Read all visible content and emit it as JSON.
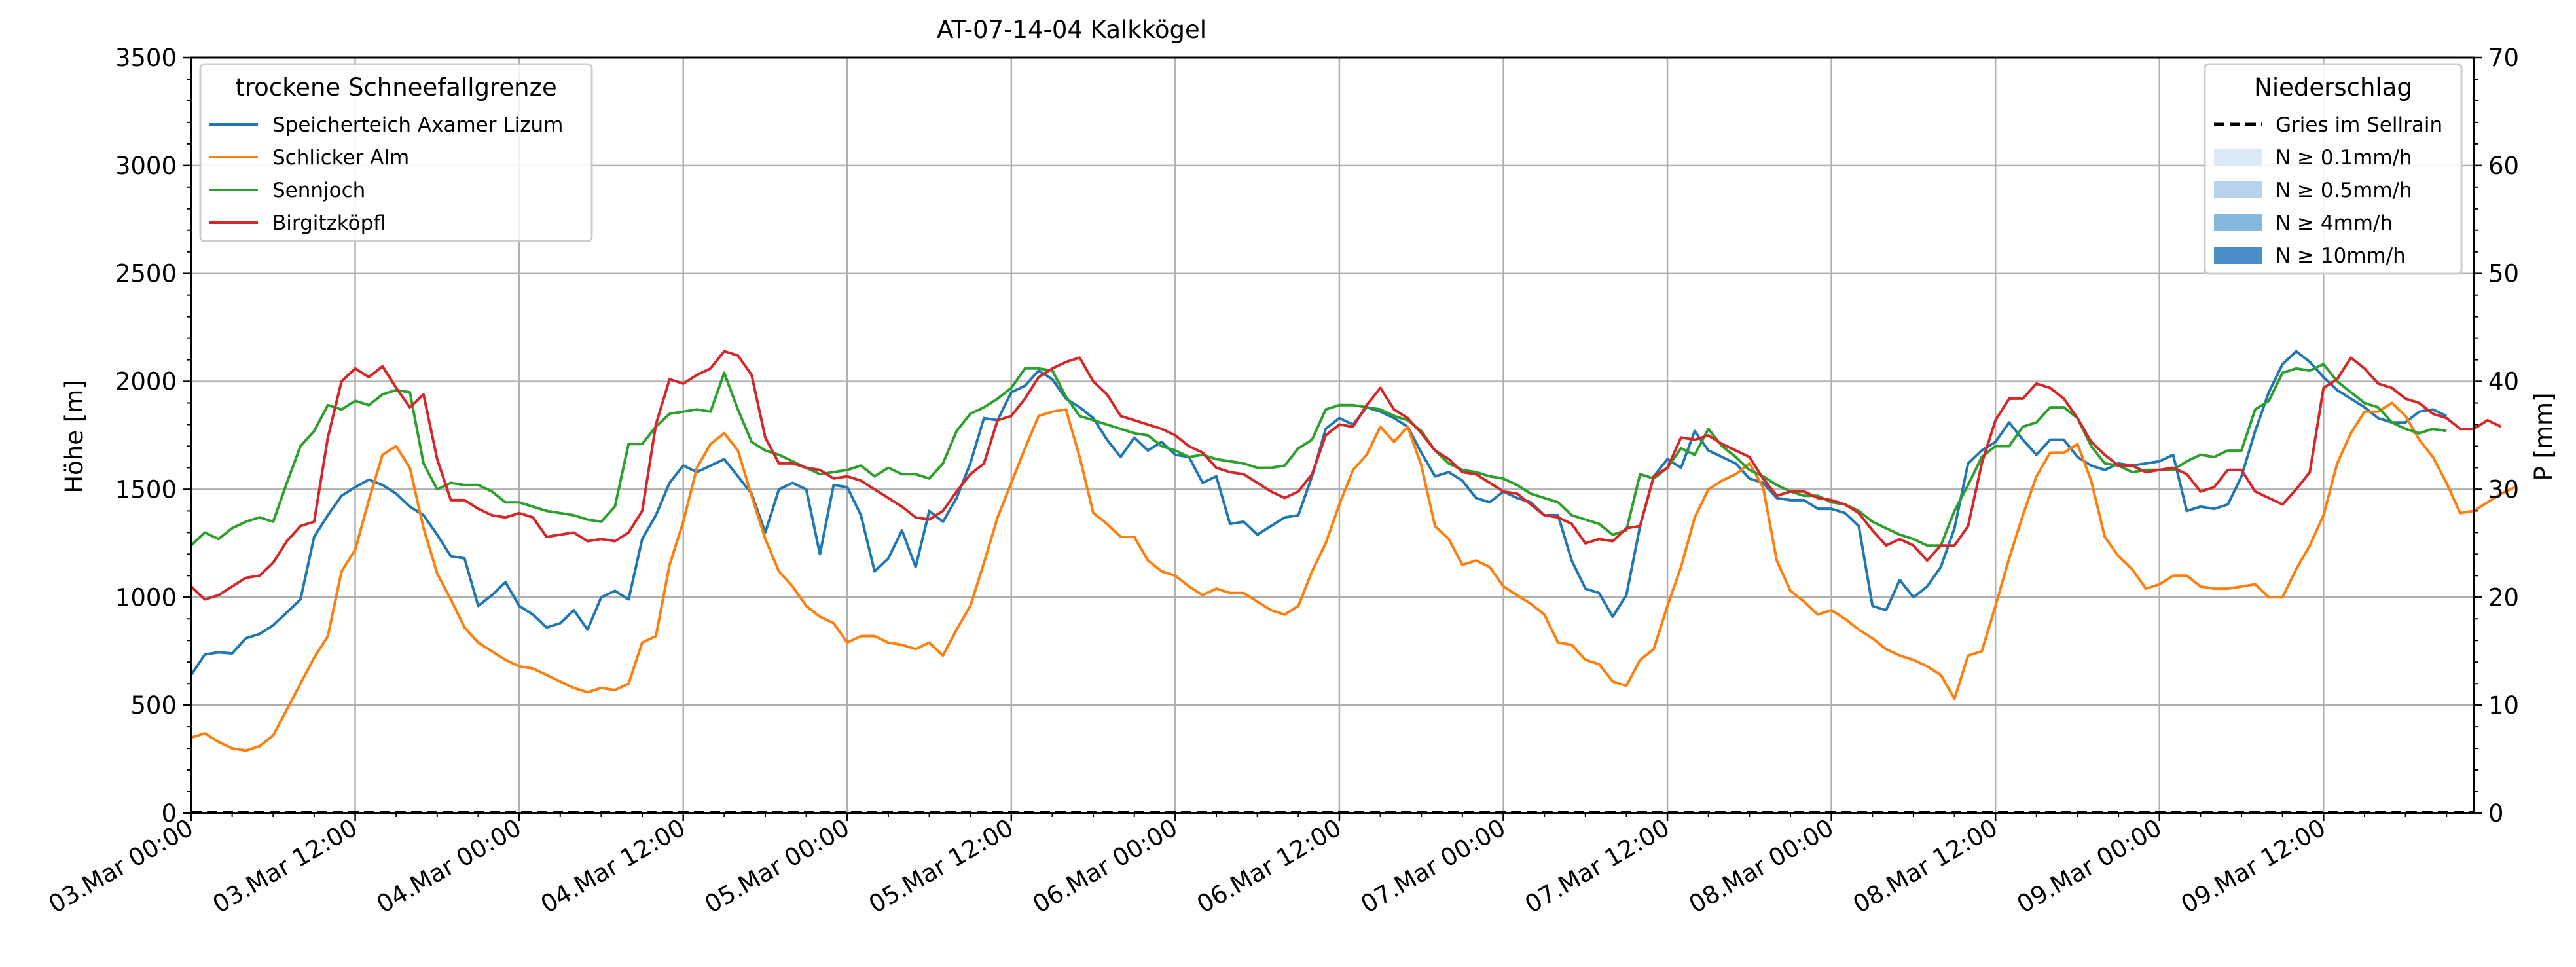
{
  "chart_data": {
    "type": "line",
    "title": "AT-07-14-04 Kalkkögel",
    "ylabel_left": "Höhe [m]",
    "ylabel_right": "P [mm]",
    "xlim": [
      "03.Mar 00:00",
      "09.Mar 23:00"
    ],
    "ylim_left": [
      0,
      3500
    ],
    "ylim_right": [
      0,
      70
    ],
    "grid": true,
    "x_tick_labels": [
      "03.Mar 00:00",
      "03.Mar 12:00",
      "04.Mar 00:00",
      "04.Mar 12:00",
      "05.Mar 00:00",
      "05.Mar 12:00",
      "06.Mar 00:00",
      "06.Mar 12:00",
      "07.Mar 00:00",
      "07.Mar 12:00",
      "08.Mar 00:00",
      "08.Mar 12:00",
      "09.Mar 00:00",
      "09.Mar 12:00"
    ],
    "y_ticks_left": [
      "0",
      "500",
      "1000",
      "1500",
      "2000",
      "2500",
      "3000",
      "3500"
    ],
    "y_ticks_right": [
      "0",
      "10",
      "20",
      "30",
      "40",
      "50",
      "60",
      "70"
    ],
    "legend_left": {
      "title": "trockene Schneefallgrenze",
      "placement": "top-left"
    },
    "legend_right": {
      "title": "Niederschlag",
      "placement": "top-right",
      "entries": [
        {
          "label": "Gries im Sellrain",
          "style": "dashed-line",
          "color": "#000000"
        },
        {
          "label": "N ≥ 0.1mm/h",
          "style": "patch",
          "color": "#dbe8f5"
        },
        {
          "label": "N ≥ 0.5mm/h",
          "style": "patch",
          "color": "#b7d3ec"
        },
        {
          "label": "N ≥ 4mm/h",
          "style": "patch",
          "color": "#84b8dd"
        },
        {
          "label": "N ≥ 10mm/h",
          "style": "patch",
          "color": "#4a8ec9"
        }
      ]
    },
    "precipitation_series": {
      "name": "Gries im Sellrain",
      "value_mm": 0
    },
    "series": [
      {
        "name": "Speicherteich Axamer Lizum",
        "color": "#1f77b4",
        "values": [
          640,
          735,
          745,
          740,
          810,
          830,
          870,
          930,
          990,
          1280,
          1380,
          1470,
          1510,
          1545,
          1520,
          1480,
          1420,
          1380,
          1290,
          1190,
          1180,
          960,
          1010,
          1070,
          960,
          920,
          860,
          880,
          940,
          850,
          1000,
          1030,
          990,
          1270,
          1380,
          1530,
          1610,
          1580,
          1610,
          1640,
          1560,
          1480,
          1300,
          1500,
          1530,
          1500,
          1200,
          1520,
          1510,
          1380,
          1120,
          1180,
          1310,
          1140,
          1400,
          1350,
          1460,
          1620,
          1830,
          1820,
          1950,
          1980,
          2050,
          2010,
          1920,
          1880,
          1830,
          1730,
          1650,
          1740,
          1680,
          1720,
          1660,
          1650,
          1530,
          1560,
          1340,
          1350,
          1290,
          1330,
          1370,
          1380,
          1560,
          1780,
          1830,
          1800,
          1880,
          1860,
          1830,
          1790,
          1670,
          1560,
          1580,
          1540,
          1460,
          1440,
          1490,
          1460,
          1440,
          1380,
          1380,
          1170,
          1040,
          1020,
          910,
          1010,
          1330,
          1560,
          1640,
          1600,
          1770,
          1680,
          1650,
          1620,
          1550,
          1530,
          1460,
          1450,
          1450,
          1410,
          1410,
          1390,
          1330,
          960,
          940,
          1080,
          1000,
          1050,
          1140,
          1320,
          1620,
          1680,
          1720,
          1810,
          1730,
          1660,
          1730,
          1730,
          1650,
          1610,
          1590,
          1620,
          1610,
          1620,
          1630,
          1660,
          1400,
          1420,
          1410,
          1430,
          1560,
          1770,
          1950,
          2080,
          2140,
          2090,
          2020,
          1960,
          1920,
          1880,
          1830,
          1810,
          1810,
          1860,
          1870,
          1840
        ]
      },
      {
        "name": "Schlicker Alm",
        "color": "#ff7f0e",
        "values": [
          350,
          370,
          330,
          300,
          290,
          310,
          360,
          480,
          600,
          720,
          820,
          1120,
          1220,
          1450,
          1660,
          1700,
          1600,
          1320,
          1110,
          990,
          860,
          790,
          750,
          710,
          680,
          670,
          640,
          610,
          580,
          560,
          580,
          570,
          600,
          790,
          820,
          1150,
          1350,
          1600,
          1710,
          1760,
          1680,
          1470,
          1270,
          1120,
          1050,
          960,
          910,
          880,
          790,
          820,
          820,
          790,
          780,
          760,
          790,
          730,
          850,
          960,
          1160,
          1370,
          1530,
          1690,
          1840,
          1860,
          1870,
          1650,
          1390,
          1340,
          1280,
          1280,
          1170,
          1120,
          1100,
          1050,
          1010,
          1040,
          1020,
          1020,
          980,
          940,
          920,
          960,
          1120,
          1250,
          1430,
          1590,
          1660,
          1790,
          1720,
          1790,
          1610,
          1330,
          1270,
          1150,
          1170,
          1140,
          1050,
          1010,
          970,
          920,
          790,
          780,
          710,
          690,
          610,
          590,
          710,
          760,
          960,
          1140,
          1370,
          1500,
          1540,
          1570,
          1620,
          1510,
          1170,
          1030,
          980,
          920,
          940,
          900,
          850,
          810,
          760,
          730,
          710,
          680,
          640,
          530,
          730,
          750,
          960,
          1180,
          1380,
          1560,
          1670,
          1670,
          1710,
          1540,
          1280,
          1190,
          1130,
          1040,
          1060,
          1100,
          1100,
          1050,
          1040,
          1040,
          1050,
          1060,
          1000,
          1000,
          1130,
          1240,
          1380,
          1620,
          1760,
          1860,
          1860,
          1900,
          1840,
          1730,
          1650,
          1530,
          1390,
          1400,
          1440,
          1480,
          1510
        ]
      },
      {
        "name": "Sennjoch",
        "color": "#2ca02c",
        "values": [
          1240,
          1300,
          1270,
          1320,
          1350,
          1370,
          1350,
          1530,
          1700,
          1770,
          1890,
          1870,
          1910,
          1890,
          1940,
          1960,
          1950,
          1620,
          1500,
          1530,
          1520,
          1520,
          1490,
          1440,
          1440,
          1420,
          1400,
          1390,
          1380,
          1360,
          1350,
          1420,
          1710,
          1710,
          1790,
          1850,
          1860,
          1870,
          1860,
          2040,
          1870,
          1720,
          1680,
          1660,
          1630,
          1600,
          1570,
          1580,
          1590,
          1610,
          1560,
          1600,
          1570,
          1570,
          1550,
          1620,
          1770,
          1850,
          1880,
          1920,
          1970,
          2060,
          2060,
          2050,
          1930,
          1840,
          1820,
          1800,
          1780,
          1760,
          1750,
          1700,
          1680,
          1650,
          1660,
          1640,
          1630,
          1620,
          1600,
          1600,
          1610,
          1690,
          1730,
          1870,
          1890,
          1890,
          1880,
          1870,
          1840,
          1820,
          1770,
          1680,
          1620,
          1590,
          1580,
          1560,
          1550,
          1520,
          1480,
          1460,
          1440,
          1380,
          1360,
          1340,
          1290,
          1310,
          1570,
          1550,
          1600,
          1690,
          1660,
          1780,
          1700,
          1650,
          1590,
          1560,
          1520,
          1490,
          1470,
          1470,
          1440,
          1430,
          1400,
          1350,
          1320,
          1290,
          1270,
          1240,
          1240,
          1400,
          1520,
          1650,
          1700,
          1700,
          1790,
          1810,
          1880,
          1880,
          1830,
          1700,
          1620,
          1610,
          1580,
          1590,
          1590,
          1590,
          1630,
          1660,
          1650,
          1680,
          1680,
          1870,
          1910,
          2040,
          2060,
          2050,
          2080,
          2000,
          1950,
          1900,
          1880,
          1810,
          1780,
          1760,
          1780,
          1770
        ]
      },
      {
        "name": "Birgitzköpfl",
        "color": "#d62728",
        "values": [
          1050,
          990,
          1010,
          1050,
          1090,
          1100,
          1160,
          1260,
          1330,
          1350,
          1740,
          2000,
          2060,
          2020,
          2070,
          1970,
          1880,
          1940,
          1640,
          1450,
          1450,
          1410,
          1380,
          1370,
          1390,
          1370,
          1280,
          1290,
          1300,
          1260,
          1270,
          1260,
          1300,
          1400,
          1800,
          2010,
          1990,
          2030,
          2060,
          2140,
          2120,
          2030,
          1740,
          1620,
          1620,
          1600,
          1590,
          1550,
          1560,
          1540,
          1500,
          1460,
          1420,
          1370,
          1360,
          1400,
          1490,
          1570,
          1620,
          1820,
          1840,
          1920,
          2020,
          2060,
          2090,
          2110,
          2000,
          1940,
          1840,
          1820,
          1800,
          1780,
          1750,
          1700,
          1670,
          1600,
          1580,
          1570,
          1530,
          1490,
          1460,
          1490,
          1570,
          1750,
          1800,
          1790,
          1890,
          1970,
          1870,
          1830,
          1760,
          1680,
          1640,
          1580,
          1570,
          1530,
          1490,
          1480,
          1430,
          1380,
          1370,
          1340,
          1250,
          1270,
          1260,
          1320,
          1330,
          1560,
          1600,
          1740,
          1730,
          1750,
          1710,
          1680,
          1650,
          1550,
          1470,
          1490,
          1490,
          1460,
          1450,
          1430,
          1390,
          1310,
          1240,
          1270,
          1240,
          1170,
          1240,
          1240,
          1330,
          1620,
          1820,
          1920,
          1920,
          1990,
          1970,
          1920,
          1830,
          1720,
          1660,
          1610,
          1610,
          1580,
          1590,
          1600,
          1570,
          1490,
          1510,
          1590,
          1590,
          1490,
          1460,
          1430,
          1500,
          1580,
          1970,
          2010,
          2110,
          2060,
          1990,
          1970,
          1920,
          1900,
          1850,
          1830,
          1780,
          1780,
          1820,
          1790
        ]
      }
    ]
  }
}
